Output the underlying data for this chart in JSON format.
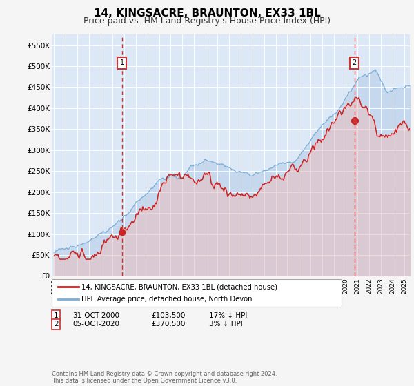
{
  "title": "14, KINGSACRE, BRAUNTON, EX33 1BL",
  "subtitle": "Price paid vs. HM Land Registry's House Price Index (HPI)",
  "ylabel_ticks": [
    "£0",
    "£50K",
    "£100K",
    "£150K",
    "£200K",
    "£250K",
    "£300K",
    "£350K",
    "£400K",
    "£450K",
    "£500K",
    "£550K"
  ],
  "ytick_vals": [
    0,
    50000,
    100000,
    150000,
    200000,
    250000,
    300000,
    350000,
    400000,
    450000,
    500000,
    550000
  ],
  "ylim": [
    0,
    575000
  ],
  "xlim_start": 1994.8,
  "xlim_end": 2025.5,
  "xtick_years": [
    1995,
    1996,
    1997,
    1998,
    1999,
    2000,
    2001,
    2002,
    2003,
    2004,
    2005,
    2006,
    2007,
    2008,
    2009,
    2010,
    2011,
    2012,
    2013,
    2014,
    2015,
    2016,
    2017,
    2018,
    2019,
    2020,
    2021,
    2022,
    2023,
    2024,
    2025
  ],
  "sale1_x": 2000.83,
  "sale1_y": 103500,
  "sale1_label": "1",
  "sale1_date": "31-OCT-2000",
  "sale1_price": "£103,500",
  "sale1_hpi": "17% ↓ HPI",
  "sale2_x": 2020.75,
  "sale2_y": 370500,
  "sale2_label": "2",
  "sale2_date": "05-OCT-2020",
  "sale2_price": "£370,500",
  "sale2_hpi": "3% ↓ HPI",
  "fig_bg": "#f5f5f5",
  "plot_bg": "#dce8f5",
  "hpi_color": "#7aadd4",
  "hpi_fill": "#c5d8ee",
  "price_color": "#cc2222",
  "price_fill": "#e8c0c0",
  "dashed_line_color": "#cc3333",
  "legend_label1": "14, KINGSACRE, BRAUNTON, EX33 1BL (detached house)",
  "legend_label2": "HPI: Average price, detached house, North Devon",
  "footer": "Contains HM Land Registry data © Crown copyright and database right 2024.\nThis data is licensed under the Open Government Licence v3.0.",
  "title_fontsize": 11,
  "subtitle_fontsize": 9
}
